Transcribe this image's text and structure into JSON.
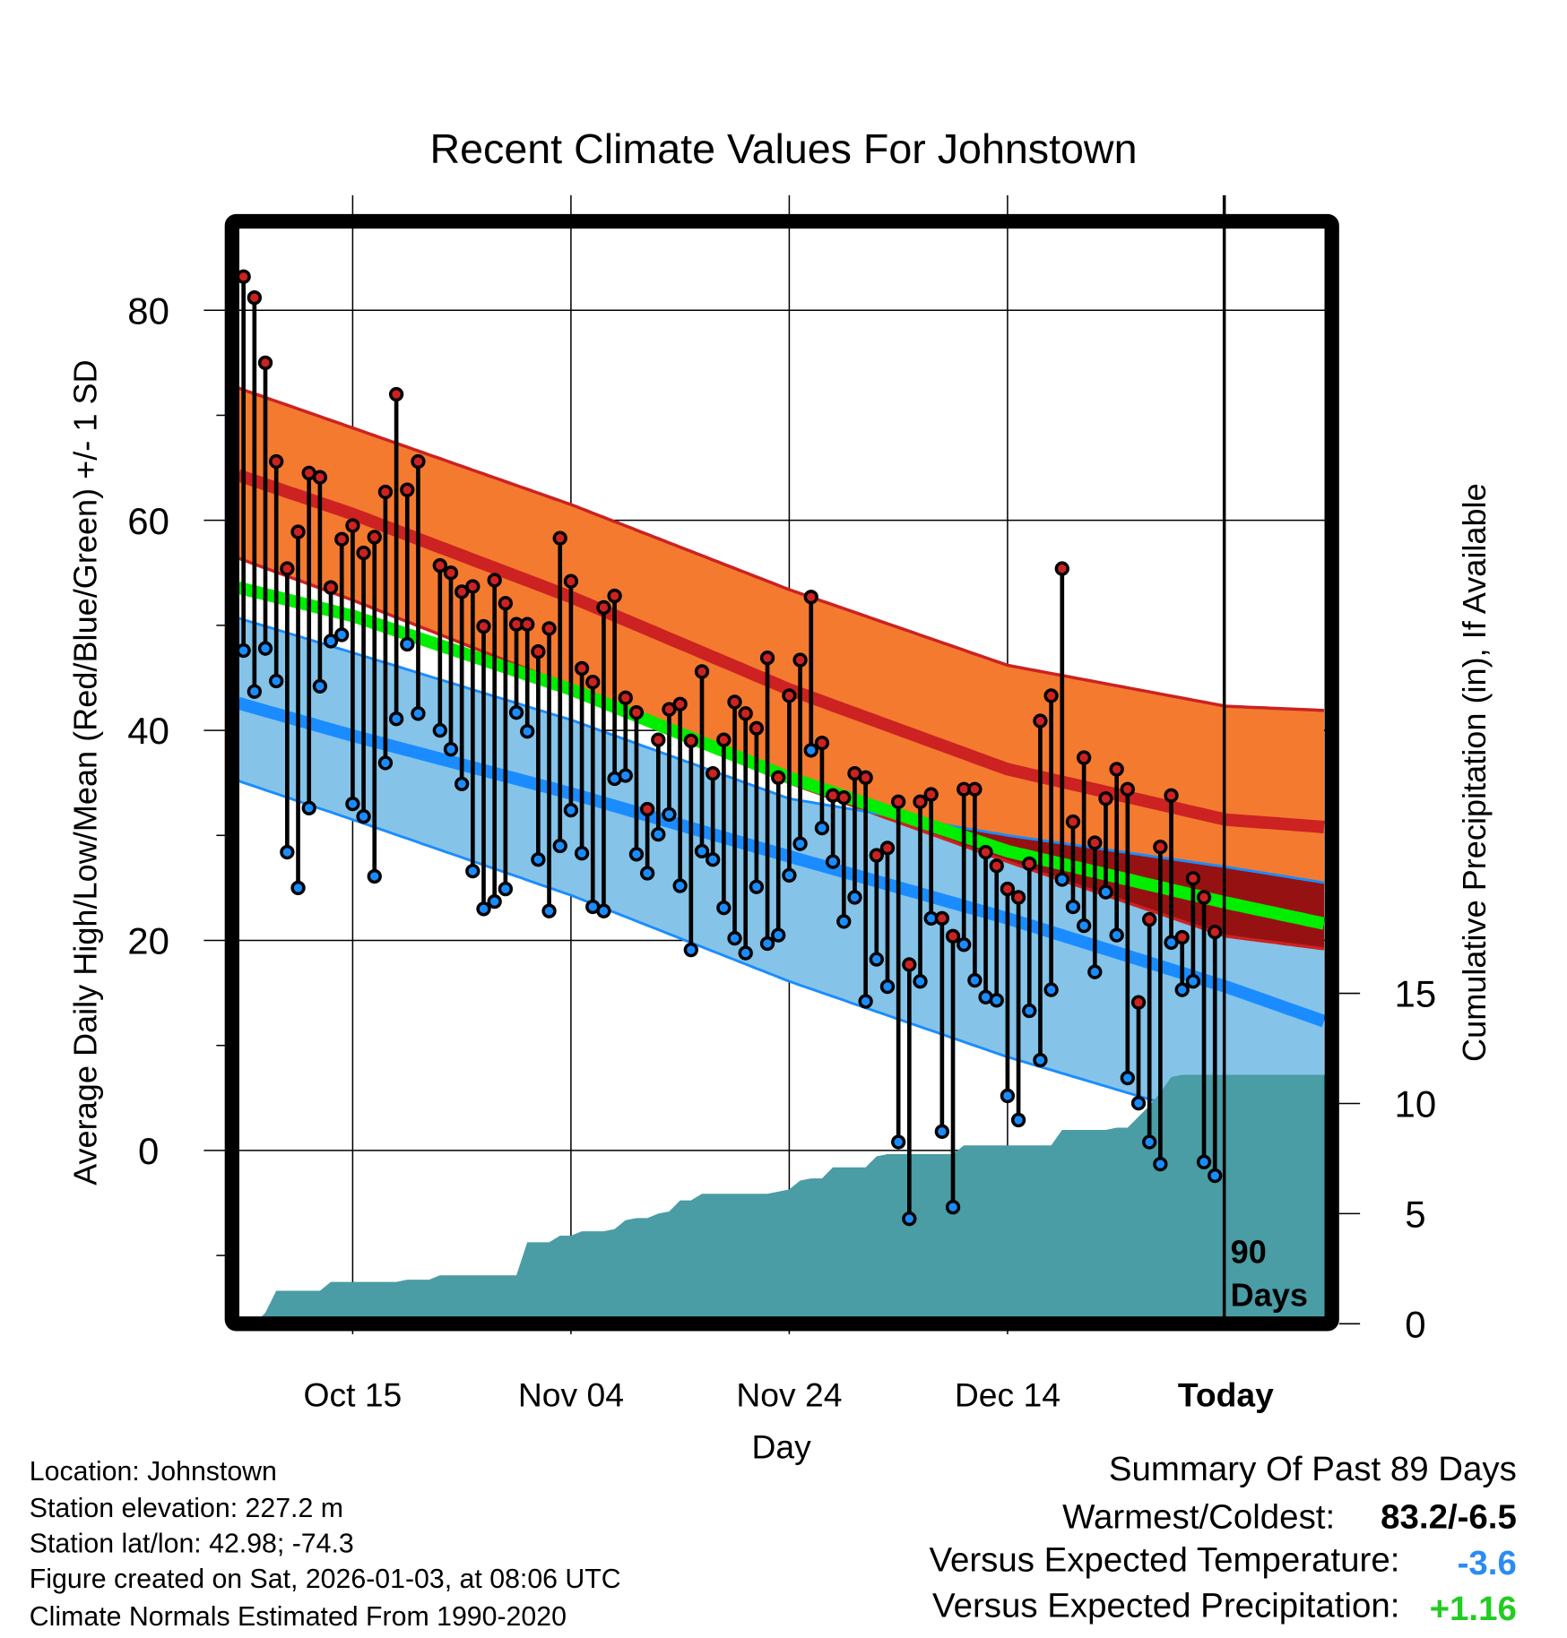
{
  "chart_data": {
    "type": "line",
    "title": "Recent Climate Values For Johnstown",
    "xlabel": "Day",
    "ylabel": "Average Daily High/Low/Mean (Red/Blue/Green) +/- 1 SD",
    "y2label": "Cumulative Precipitation (in), If Available",
    "ylim": [
      -16,
      88.5
    ],
    "y2lim": [
      0,
      50
    ],
    "yticks": [
      "80",
      "60",
      "40",
      "20",
      "0"
    ],
    "yticks_values": [
      80,
      60,
      40,
      20,
      0
    ],
    "yminor_values": [
      70,
      50,
      30,
      10,
      -10
    ],
    "y2ticks": [
      "15",
      "10",
      "5",
      "0"
    ],
    "y2ticks_values": [
      15,
      10,
      5,
      0
    ],
    "xticks": [
      "Oct 15",
      "Nov 04",
      "Nov 24",
      "Dec 14",
      "Today"
    ],
    "xticks_day_index": [
      10,
      30,
      50,
      70,
      90
    ],
    "x_range_day_index": [
      -0.5,
      99
    ],
    "start_date": "Oct 05",
    "today_label": [
      "90",
      "Days"
    ],
    "highs": [
      83.2,
      81.2,
      75.0,
      65.6,
      55.4,
      58.9,
      64.5,
      64.1,
      53.6,
      58.2,
      59.5,
      56.9,
      58.4,
      62.7,
      72.0,
      62.9,
      65.6,
      null,
      55.7,
      55.0,
      53.2,
      53.7,
      49.9,
      54.3,
      52.1,
      50.1,
      50.1,
      47.5,
      49.7,
      58.3,
      54.2,
      45.9,
      44.6,
      51.7,
      52.8,
      43.1,
      41.7,
      32.5,
      39.1,
      42.0,
      42.5,
      39.0,
      45.6,
      35.9,
      39.1,
      42.7,
      41.6,
      40.2,
      46.9,
      35.5,
      43.3,
      46.7,
      52.7,
      38.8,
      33.8,
      33.6,
      35.9,
      35.5,
      28.1,
      28.8,
      33.2,
      17.7,
      33.2,
      33.9,
      22.1,
      20.4,
      34.4,
      34.4,
      28.4,
      27.1,
      24.9,
      24.1,
      27.3,
      40.9,
      43.3,
      55.4,
      31.3,
      37.4,
      29.3,
      33.5,
      36.3,
      34.4,
      14.1,
      22.0,
      28.9,
      33.8,
      20.3,
      25.9,
      24.1,
      20.8
    ],
    "lows": [
      47.6,
      43.7,
      47.8,
      44.7,
      28.4,
      25.0,
      32.6,
      44.2,
      48.5,
      49.1,
      33.0,
      31.8,
      26.1,
      36.9,
      41.1,
      48.2,
      41.6,
      null,
      40.0,
      38.2,
      34.9,
      26.6,
      23.0,
      23.7,
      24.9,
      41.7,
      39.9,
      27.7,
      22.8,
      29.0,
      32.4,
      28.3,
      23.2,
      22.8,
      35.4,
      35.7,
      28.2,
      26.4,
      30.1,
      32.0,
      25.2,
      19.1,
      28.5,
      27.7,
      23.1,
      20.2,
      18.8,
      25.1,
      19.7,
      20.5,
      26.2,
      29.2,
      38.1,
      30.7,
      27.5,
      21.8,
      24.1,
      14.2,
      18.2,
      15.6,
      0.8,
      -6.5,
      16.1,
      22.1,
      1.8,
      -5.4,
      19.6,
      16.2,
      14.6,
      14.3,
      5.2,
      2.9,
      13.3,
      8.6,
      15.3,
      25.8,
      23.2,
      21.4,
      17.0,
      24.6,
      20.5,
      6.9,
      4.5,
      0.8,
      -1.3,
      19.8,
      15.3,
      16.1,
      -1.1,
      -2.4
    ],
    "precip_cumulative": [
      0,
      0,
      0.5,
      1.5,
      1.5,
      1.5,
      1.5,
      1.5,
      1.9,
      1.9,
      1.9,
      1.9,
      1.9,
      1.9,
      1.9,
      2.0,
      2.0,
      2.0,
      2.2,
      2.2,
      2.2,
      2.2,
      2.2,
      2.2,
      2.2,
      2.2,
      3.7,
      3.7,
      3.7,
      4.0,
      4.0,
      4.2,
      4.2,
      4.2,
      4.3,
      4.7,
      4.8,
      4.8,
      5.0,
      5.1,
      5.6,
      5.6,
      5.9,
      5.9,
      5.9,
      5.9,
      5.9,
      5.9,
      5.9,
      6.0,
      6.1,
      6.5,
      6.6,
      6.6,
      7.1,
      7.1,
      7.1,
      7.1,
      7.6,
      7.7,
      7.7,
      7.7,
      7.7,
      7.7,
      7.7,
      7.7,
      8.1,
      8.1,
      8.1,
      8.1,
      8.1,
      8.1,
      8.1,
      8.1,
      8.1,
      8.8,
      8.8,
      8.8,
      8.8,
      8.8,
      8.9,
      8.9,
      9.4,
      9.9,
      10.5,
      11.2,
      11.3,
      11.3,
      11.3,
      11.3
    ],
    "normals": {
      "day_index": [
        -0.5,
        10,
        30,
        50,
        70,
        90,
        99
      ],
      "high_plus_sd": [
        72.6,
        68.8,
        61.5,
        53.4,
        46.2,
        42.3,
        41.9
      ],
      "high_mean": [
        64.3,
        60.6,
        52.7,
        43.9,
        36.3,
        31.5,
        30.8
      ],
      "high_minus_sd": [
        56.4,
        52.4,
        44.2,
        35.0,
        27.5,
        20.4,
        19.2
      ],
      "mean": [
        53.6,
        50.9,
        43.9,
        35.5,
        28.5,
        23.6,
        21.6
      ],
      "low_plus_sd": [
        50.7,
        47.4,
        41.0,
        33.5,
        30.0,
        27.0,
        25.5
      ],
      "low_mean": [
        42.6,
        39.5,
        34.0,
        28.0,
        22.1,
        15.6,
        12.3
      ],
      "low_minus_sd": [
        35.2,
        31.5,
        24.3,
        16.1,
        8.9,
        2.7,
        0.2
      ]
    },
    "colors": {
      "high_band": "#f47a30",
      "high_line": "#cc2222",
      "overlap": "#961212",
      "mean_line": "#00ee00",
      "low_band": "#85c3e8",
      "low_line": "#1a8cff",
      "precip": "#4a9ca5",
      "high_dot": "#cc2222",
      "low_dot": "#1a8cff"
    }
  },
  "info": {
    "location": "Location: Johnstown",
    "elevation": "Station elevation: 227.2 m",
    "latlon": "Station lat/lon: 42.98; -74.3",
    "created": "Figure created on Sat, 2026-01-03, at 08:06 UTC",
    "normals": "Climate Normals Estimated From 1990-2020"
  },
  "summary": {
    "title": "Summary Of Past 89 Days",
    "warmest_label": "Warmest/Coldest:",
    "warmest_value": "83.2/-6.5",
    "temp_label": "Versus Expected Temperature:",
    "temp_value": "-3.6",
    "temp_color": "#2a8cf0",
    "precip_label": "Versus Expected Precipitation:",
    "precip_value": "+1.16",
    "precip_color": "#22cc22"
  }
}
